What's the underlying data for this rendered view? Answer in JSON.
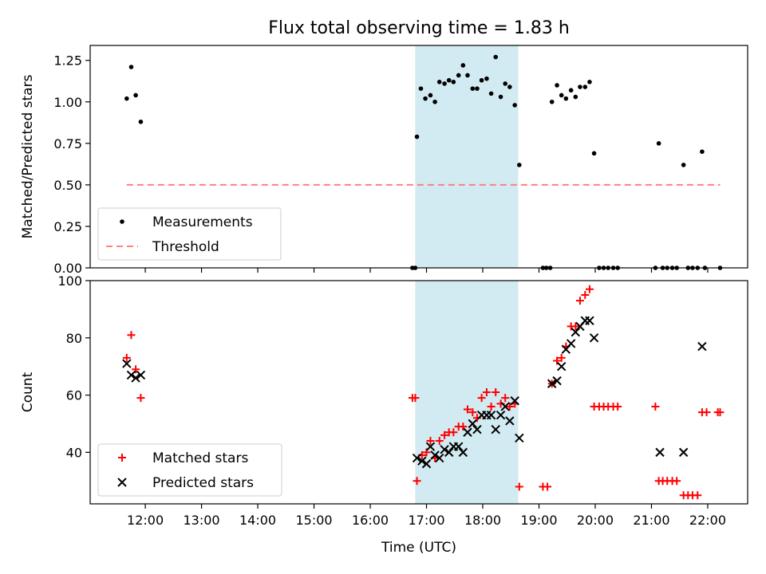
{
  "title": "Flux total observing time = 1.83 h",
  "colors": {
    "shade": "#add8e6",
    "measurement": "#000000",
    "threshold": "#ff7f7f",
    "matched": "#ff0000",
    "predicted": "#000000"
  },
  "shaded_interval": {
    "start_h": 16.8,
    "end_h": 18.63
  },
  "x_axis": {
    "label": "Time (UTC)",
    "range_h": [
      11.02,
      22.71
    ],
    "ticks": [
      {
        "h": 12,
        "label": "12:00"
      },
      {
        "h": 13,
        "label": "13:00"
      },
      {
        "h": 14,
        "label": "14:00"
      },
      {
        "h": 15,
        "label": "15:00"
      },
      {
        "h": 16,
        "label": "16:00"
      },
      {
        "h": 17,
        "label": "17:00"
      },
      {
        "h": 18,
        "label": "18:00"
      },
      {
        "h": 19,
        "label": "19:00"
      },
      {
        "h": 20,
        "label": "20:00"
      },
      {
        "h": 21,
        "label": "21:00"
      },
      {
        "h": 22,
        "label": "22:00"
      }
    ]
  },
  "chart_data": [
    {
      "type": "scatter",
      "ylabel": "Matched/Predicted stars",
      "ylim": [
        0,
        1.34
      ],
      "yticks": [
        {
          "v": 0.0,
          "label": "0.00"
        },
        {
          "v": 0.25,
          "label": "0.25"
        },
        {
          "v": 0.5,
          "label": "0.50"
        },
        {
          "v": 0.75,
          "label": "0.75"
        },
        {
          "v": 1.0,
          "label": "1.00"
        },
        {
          "v": 1.25,
          "label": "1.25"
        }
      ],
      "legend": {
        "placement": "lower-left",
        "entries": [
          "Measurements",
          "Threshold"
        ]
      },
      "series": [
        {
          "name": "Measurements",
          "marker": "dot",
          "points": [
            [
              11.67,
              1.02
            ],
            [
              11.75,
              1.21
            ],
            [
              11.83,
              1.04
            ],
            [
              11.92,
              0.88
            ],
            [
              16.75,
              0.0
            ],
            [
              16.8,
              0.0
            ],
            [
              16.83,
              0.79
            ],
            [
              16.9,
              1.08
            ],
            [
              16.98,
              1.02
            ],
            [
              17.07,
              1.04
            ],
            [
              17.15,
              1.0
            ],
            [
              17.23,
              1.12
            ],
            [
              17.32,
              1.11
            ],
            [
              17.4,
              1.13
            ],
            [
              17.48,
              1.12
            ],
            [
              17.57,
              1.16
            ],
            [
              17.65,
              1.22
            ],
            [
              17.73,
              1.16
            ],
            [
              17.82,
              1.08
            ],
            [
              17.9,
              1.08
            ],
            [
              17.98,
              1.13
            ],
            [
              18.07,
              1.14
            ],
            [
              18.15,
              1.05
            ],
            [
              18.23,
              1.27
            ],
            [
              18.32,
              1.03
            ],
            [
              18.4,
              1.11
            ],
            [
              18.48,
              1.09
            ],
            [
              18.57,
              0.98
            ],
            [
              18.65,
              0.62
            ],
            [
              19.07,
              0.0
            ],
            [
              19.13,
              0.0
            ],
            [
              19.2,
              0.0
            ],
            [
              19.23,
              1.0
            ],
            [
              19.32,
              1.1
            ],
            [
              19.4,
              1.04
            ],
            [
              19.48,
              1.02
            ],
            [
              19.57,
              1.07
            ],
            [
              19.65,
              1.03
            ],
            [
              19.73,
              1.09
            ],
            [
              19.82,
              1.09
            ],
            [
              19.9,
              1.12
            ],
            [
              19.98,
              0.69
            ],
            [
              20.07,
              0.0
            ],
            [
              20.15,
              0.0
            ],
            [
              20.23,
              0.0
            ],
            [
              20.32,
              0.0
            ],
            [
              20.4,
              0.0
            ],
            [
              21.07,
              0.0
            ],
            [
              21.13,
              0.75
            ],
            [
              21.2,
              0.0
            ],
            [
              21.28,
              0.0
            ],
            [
              21.37,
              0.0
            ],
            [
              21.45,
              0.0
            ],
            [
              21.57,
              0.62
            ],
            [
              21.65,
              0.0
            ],
            [
              21.73,
              0.0
            ],
            [
              21.82,
              0.0
            ],
            [
              21.9,
              0.7
            ],
            [
              21.95,
              0.0
            ],
            [
              22.22,
              0.0
            ]
          ]
        },
        {
          "name": "Threshold",
          "style": "dashed-line",
          "points": [
            [
              11.67,
              0.5
            ],
            [
              22.22,
              0.5
            ]
          ]
        }
      ]
    },
    {
      "type": "scatter",
      "ylabel": "Count",
      "ylim": [
        22,
        100
      ],
      "yticks": [
        {
          "v": 40,
          "label": "40"
        },
        {
          "v": 60,
          "label": "60"
        },
        {
          "v": 80,
          "label": "80"
        },
        {
          "v": 100,
          "label": "100"
        }
      ],
      "legend": {
        "placement": "lower-left",
        "entries": [
          "Matched stars",
          "Predicted stars"
        ]
      },
      "series": [
        {
          "name": "Matched stars",
          "marker": "plus",
          "points": [
            [
              11.67,
              73
            ],
            [
              11.75,
              81
            ],
            [
              11.83,
              69
            ],
            [
              11.92,
              59
            ],
            [
              16.75,
              59
            ],
            [
              16.8,
              59
            ],
            [
              16.83,
              30
            ],
            [
              16.92,
              39
            ],
            [
              17.0,
              40
            ],
            [
              17.07,
              44
            ],
            [
              17.15,
              38
            ],
            [
              17.23,
              44
            ],
            [
              17.32,
              46
            ],
            [
              17.4,
              47
            ],
            [
              17.48,
              47
            ],
            [
              17.57,
              49
            ],
            [
              17.65,
              49
            ],
            [
              17.73,
              55
            ],
            [
              17.82,
              54
            ],
            [
              17.9,
              52
            ],
            [
              17.98,
              59
            ],
            [
              18.07,
              61
            ],
            [
              18.15,
              56
            ],
            [
              18.23,
              61
            ],
            [
              18.32,
              57
            ],
            [
              18.4,
              59
            ],
            [
              18.48,
              56
            ],
            [
              18.57,
              57
            ],
            [
              18.65,
              28
            ],
            [
              19.07,
              28
            ],
            [
              19.15,
              28
            ],
            [
              19.23,
              64
            ],
            [
              19.32,
              72
            ],
            [
              19.4,
              73
            ],
            [
              19.48,
              77
            ],
            [
              19.57,
              84
            ],
            [
              19.65,
              84
            ],
            [
              19.73,
              93
            ],
            [
              19.82,
              95
            ],
            [
              19.9,
              97
            ],
            [
              19.98,
              56
            ],
            [
              20.07,
              56
            ],
            [
              20.15,
              56
            ],
            [
              20.23,
              56
            ],
            [
              20.32,
              56
            ],
            [
              20.4,
              56
            ],
            [
              21.07,
              56
            ],
            [
              21.13,
              30
            ],
            [
              21.2,
              30
            ],
            [
              21.28,
              30
            ],
            [
              21.37,
              30
            ],
            [
              21.45,
              30
            ],
            [
              21.57,
              25
            ],
            [
              21.65,
              25
            ],
            [
              21.73,
              25
            ],
            [
              21.82,
              25
            ],
            [
              21.9,
              54
            ],
            [
              21.98,
              54
            ],
            [
              22.18,
              54
            ],
            [
              22.22,
              54
            ]
          ]
        },
        {
          "name": "Predicted stars",
          "marker": "x",
          "points": [
            [
              11.67,
              71
            ],
            [
              11.75,
              67
            ],
            [
              11.83,
              66
            ],
            [
              11.92,
              67
            ],
            [
              16.83,
              38
            ],
            [
              16.92,
              37
            ],
            [
              17.0,
              36
            ],
            [
              17.07,
              42
            ],
            [
              17.15,
              39
            ],
            [
              17.23,
              38
            ],
            [
              17.32,
              41
            ],
            [
              17.4,
              40
            ],
            [
              17.48,
              42
            ],
            [
              17.57,
              42
            ],
            [
              17.65,
              40
            ],
            [
              17.73,
              47
            ],
            [
              17.82,
              50
            ],
            [
              17.9,
              48
            ],
            [
              17.98,
              53
            ],
            [
              18.07,
              53
            ],
            [
              18.15,
              53
            ],
            [
              18.23,
              48
            ],
            [
              18.32,
              53
            ],
            [
              18.4,
              56
            ],
            [
              18.48,
              51
            ],
            [
              18.57,
              58
            ],
            [
              18.65,
              45
            ],
            [
              19.23,
              64
            ],
            [
              19.32,
              65
            ],
            [
              19.4,
              70
            ],
            [
              19.48,
              76
            ],
            [
              19.57,
              78
            ],
            [
              19.65,
              82
            ],
            [
              19.73,
              84
            ],
            [
              19.82,
              86
            ],
            [
              19.9,
              86
            ],
            [
              19.98,
              80
            ],
            [
              21.15,
              40
            ],
            [
              21.57,
              40
            ],
            [
              21.9,
              77
            ]
          ]
        }
      ]
    }
  ]
}
